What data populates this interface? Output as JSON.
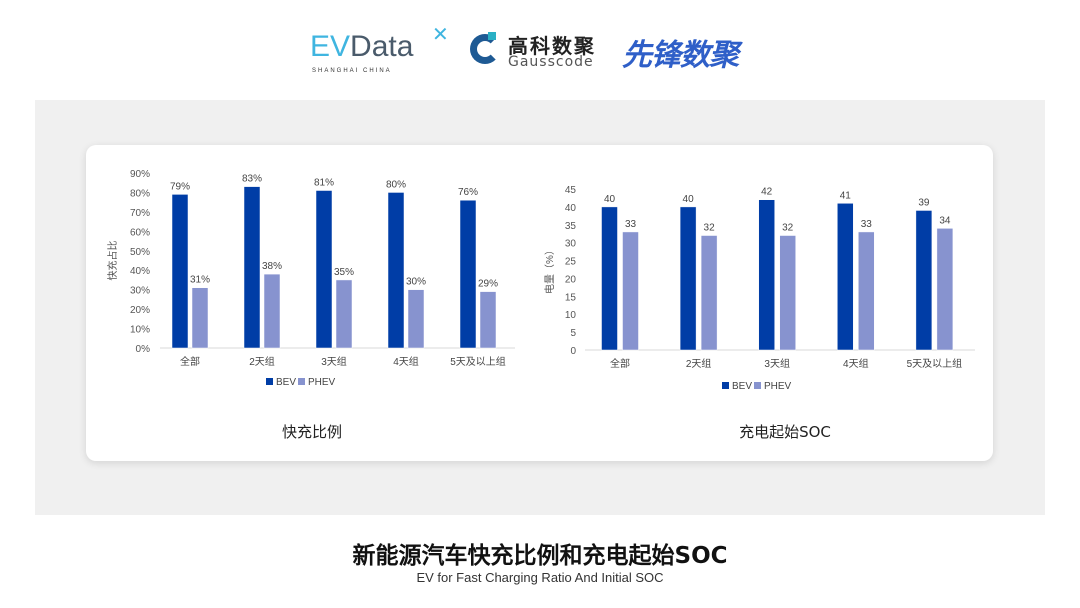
{
  "logos": {
    "evdata": {
      "text": "EVData",
      "ev": "EV",
      "rest": "Data",
      "subtitle": "SHANGHAI CHINA"
    },
    "gausscode": {
      "cn": "高科数聚",
      "en": "Gausscode"
    },
    "xianfeng": {
      "text": "先锋数聚"
    }
  },
  "colors": {
    "BEV": "#003da6",
    "PHEV": "#8793cf",
    "panel": "#f0f0f0"
  },
  "chart_data": [
    {
      "type": "bar",
      "title": "快充比例",
      "ylabel": "快充占比",
      "xlabel": "",
      "categories": [
        "全部",
        "2天组",
        "3天组",
        "4天组",
        "5天及以上组"
      ],
      "ylim": [
        0,
        90
      ],
      "yticks": [
        "0%",
        "10%",
        "20%",
        "30%",
        "40%",
        "50%",
        "60%",
        "70%",
        "80%",
        "90%"
      ],
      "unit": "%",
      "legend": "bottom",
      "grid": false,
      "series": [
        {
          "name": "BEV",
          "values": [
            79,
            83,
            81,
            80,
            76
          ],
          "labels": [
            "79%",
            "83%",
            "81%",
            "80%",
            "76%"
          ]
        },
        {
          "name": "PHEV",
          "values": [
            31,
            38,
            35,
            30,
            29
          ],
          "labels": [
            "31%",
            "38%",
            "35%",
            "30%",
            "29%"
          ]
        }
      ]
    },
    {
      "type": "bar",
      "title": "充电起始SOC",
      "ylabel": "电量（%）",
      "xlabel": "",
      "categories": [
        "全部",
        "2天组",
        "3天组",
        "4天组",
        "5天及以上组"
      ],
      "ylim": [
        0,
        45
      ],
      "yticks": [
        "0",
        "5",
        "10",
        "15",
        "20",
        "25",
        "30",
        "35",
        "40",
        "45"
      ],
      "unit": "",
      "legend": "bottom",
      "grid": false,
      "series": [
        {
          "name": "BEV",
          "values": [
            40,
            40,
            42,
            41,
            39
          ],
          "labels": [
            "40",
            "40",
            "42",
            "41",
            "39"
          ]
        },
        {
          "name": "PHEV",
          "values": [
            33,
            32,
            32,
            33,
            34
          ],
          "labels": [
            "33",
            "32",
            "32",
            "33",
            "34"
          ]
        }
      ]
    }
  ],
  "footer": {
    "title": "新能源汽车快充比例和充电起始SOC",
    "subtitle": "EV for Fast Charging Ratio And Initial SOC"
  }
}
